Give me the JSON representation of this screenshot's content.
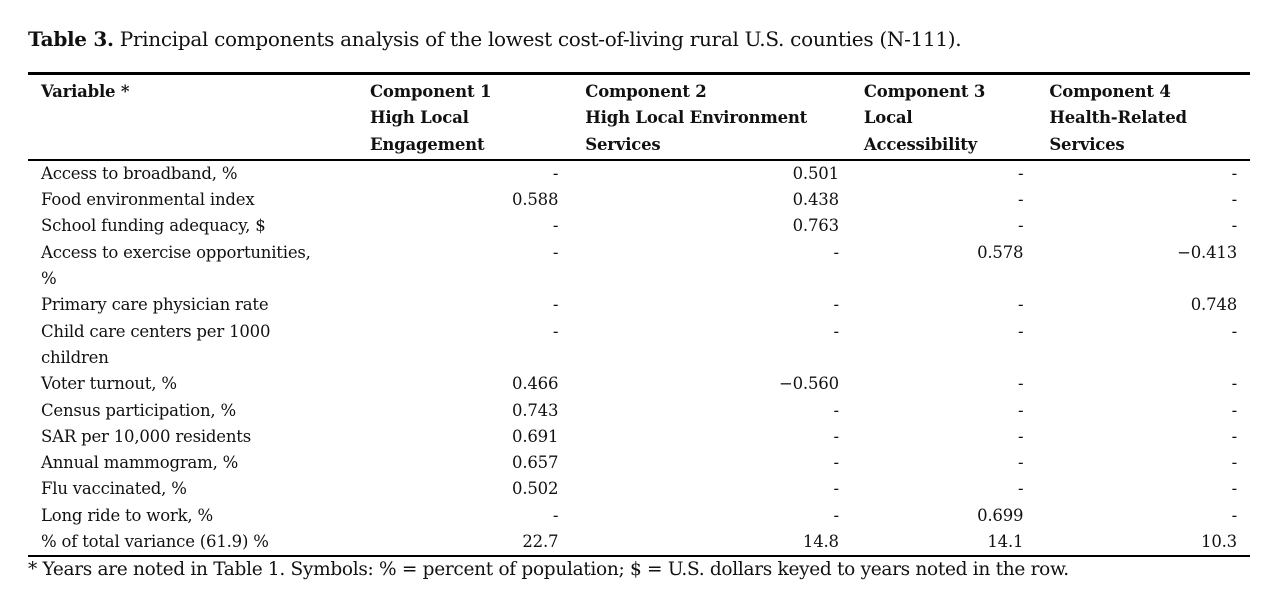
{
  "title": {
    "label": "Table 3.",
    "text": " Principal components analysis of the lowest cost-of-living rural U.S. counties (N-111)."
  },
  "headers": [
    [
      "Variable *"
    ],
    [
      "Component 1",
      "High Local",
      "Engagement"
    ],
    [
      "Component 2",
      "High Local Environment",
      "Services"
    ],
    [
      "Component 3",
      "Local",
      "Accessibility"
    ],
    [
      "Component 4",
      "Health-Related",
      "Services"
    ]
  ],
  "rows": [
    [
      "Access to broadband, %",
      "-",
      "0.501",
      "-",
      "-"
    ],
    [
      "Food environmental index",
      "0.588",
      "0.438",
      "-",
      "-"
    ],
    [
      "School funding adequacy, $",
      "-",
      "0.763",
      "-",
      "-"
    ],
    [
      "Access to exercise opportunities, %",
      "-",
      "-",
      "0.578",
      "−0.413"
    ],
    [
      "Primary care physician rate",
      "-",
      "-",
      "-",
      "0.748"
    ],
    [
      "Child care centers per 1000 children",
      "-",
      "-",
      "-",
      "-"
    ],
    [
      "Voter turnout, %",
      "0.466",
      "−0.560",
      "-",
      "-"
    ],
    [
      "Census participation, %",
      "0.743",
      "-",
      "-",
      "-"
    ],
    [
      "SAR per 10,000 residents",
      "0.691",
      "-",
      "-",
      "-"
    ],
    [
      "Annual mammogram, %",
      "0.657",
      "-",
      "-",
      "-"
    ],
    [
      "Flu vaccinated, %",
      "0.502",
      "-",
      "-",
      "-"
    ],
    [
      "Long ride to work, %",
      "-",
      "-",
      "0.699",
      "-"
    ],
    [
      "% of total variance (61.9) %",
      "22.7",
      "14.8",
      "14.1",
      "10.3"
    ]
  ],
  "footnote": "* Years are noted in Table 1. Symbols: % = percent of population; $ = U.S. dollars keyed to years noted in the row."
}
